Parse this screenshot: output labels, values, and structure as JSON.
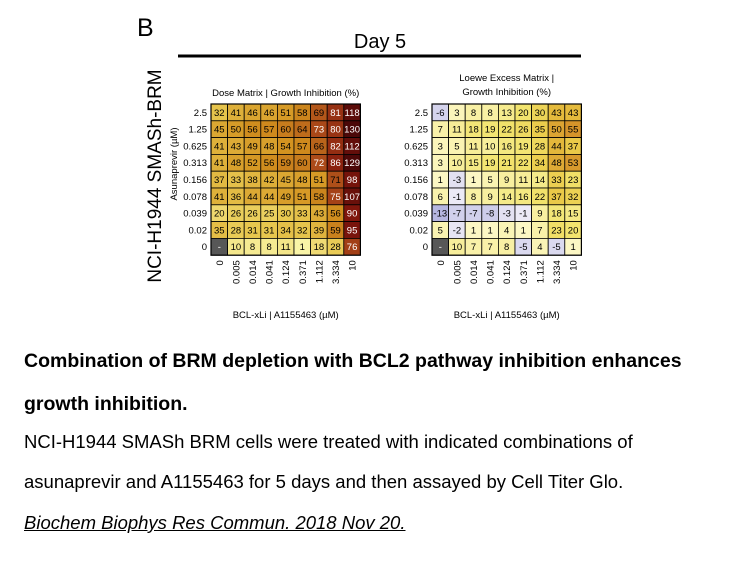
{
  "panel_label": "B",
  "day_label": "Day 5",
  "cell_line_label": "NCI-H1944 SMASh-BRM",
  "chart_data": [
    {
      "type": "heatmap",
      "title_line1": "Dose Matrix | Growth Inhibition (%)",
      "title_line2": "",
      "xlabel": "BCL-xLi | A1155463 (µM)",
      "ylabel": "Asunaprevir (µM)",
      "x_ticks": [
        "0",
        "0.005",
        "0.014",
        "0.041",
        "0.124",
        "0.371",
        "1.112",
        "3.334",
        "10"
      ],
      "y_ticks": [
        "2.5",
        "1.25",
        "0.625",
        "0.313",
        "0.156",
        "0.078",
        "0.039",
        "0.02",
        "0"
      ],
      "values": [
        [
          "32",
          "41",
          "46",
          "46",
          "51",
          "58",
          "69",
          "81",
          "118"
        ],
        [
          "45",
          "50",
          "56",
          "57",
          "60",
          "64",
          "73",
          "80",
          "130"
        ],
        [
          "41",
          "43",
          "49",
          "48",
          "54",
          "57",
          "66",
          "82",
          "112"
        ],
        [
          "41",
          "48",
          "52",
          "56",
          "59",
          "60",
          "72",
          "86",
          "129"
        ],
        [
          "37",
          "33",
          "38",
          "42",
          "45",
          "48",
          "51",
          "71",
          "98"
        ],
        [
          "41",
          "36",
          "44",
          "44",
          "49",
          "51",
          "58",
          "75",
          "107"
        ],
        [
          "20",
          "26",
          "26",
          "25",
          "30",
          "33",
          "43",
          "56",
          "90"
        ],
        [
          "35",
          "28",
          "31",
          "31",
          "34",
          "32",
          "39",
          "59",
          "95"
        ],
        [
          "-",
          "10",
          "8",
          "8",
          "11",
          "1",
          "18",
          "28",
          "76"
        ]
      ]
    },
    {
      "type": "heatmap",
      "title_line1": "Loewe Excess Matrix |",
      "title_line2": "Growth Inhibition (%)",
      "xlabel": "BCL-xLi | A1155463 (µM)",
      "ylabel": "Asunaprevir (µM)",
      "x_ticks": [
        "0",
        "0.005",
        "0.014",
        "0.041",
        "0.124",
        "0.371",
        "1.112",
        "3.334",
        "10"
      ],
      "y_ticks": [
        "2.5",
        "1.25",
        "0.625",
        "0.313",
        "0.156",
        "0.078",
        "0.039",
        "0.02",
        "0"
      ],
      "values": [
        [
          "-6",
          "3",
          "8",
          "8",
          "13",
          "20",
          "30",
          "43",
          "43"
        ],
        [
          "7",
          "11",
          "18",
          "19",
          "22",
          "26",
          "35",
          "50",
          "55"
        ],
        [
          "3",
          "5",
          "11",
          "10",
          "16",
          "19",
          "28",
          "44",
          "37"
        ],
        [
          "3",
          "10",
          "15",
          "19",
          "21",
          "22",
          "34",
          "48",
          "53"
        ],
        [
          "1",
          "-3",
          "1",
          "5",
          "9",
          "11",
          "14",
          "33",
          "23"
        ],
        [
          "6",
          "-1",
          "8",
          "9",
          "14",
          "16",
          "22",
          "37",
          "32"
        ],
        [
          "-13",
          "-7",
          "-7",
          "-8",
          "-3",
          "-1",
          "9",
          "18",
          "15"
        ],
        [
          "5",
          "-2",
          "1",
          "1",
          "4",
          "1",
          "7",
          "23",
          "20"
        ],
        [
          "-",
          "10",
          "7",
          "7",
          "8",
          "-5",
          "4",
          "-5",
          "1"
        ]
      ]
    }
  ],
  "caption": {
    "title_line1": "Combination of BRM depletion with BCL2 pathway inhibition enhances",
    "title_line2": "growth inhibition.",
    "body_line1": "NCI-H1944 SMASh BRM cells were treated with indicated combinations of",
    "body_line2": "asunaprevir and A1155463 for 5 days and then assayed by Cell Titer Glo.",
    "citation": "Biochem Biophys Res Commun. 2018 Nov 20."
  }
}
